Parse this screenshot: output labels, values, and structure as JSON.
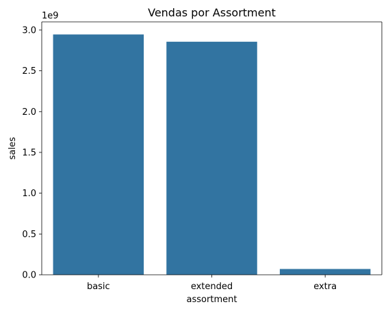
{
  "chart_data": {
    "type": "bar",
    "title": "Vendas por Assortment",
    "xlabel": "assortment",
    "ylabel": "sales",
    "y_offset_label": "1e9",
    "categories": [
      "basic",
      "extended",
      "extra"
    ],
    "values": [
      2945750070,
      2856484241,
      70946312
    ],
    "ylim": [
      0,
      3100000000.0
    ],
    "yticks": [
      0,
      500000000.0,
      1000000000.0,
      1500000000.0,
      2000000000.0,
      2500000000.0,
      3000000000.0
    ],
    "ytick_labels": [
      "0.0",
      "0.5",
      "1.0",
      "1.5",
      "2.0",
      "2.5",
      "3.0"
    ],
    "bar_color": "#3274a1",
    "grid": false,
    "legend": "none"
  }
}
